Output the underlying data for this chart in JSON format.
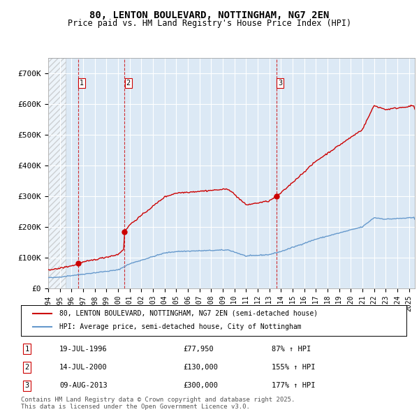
{
  "title": "80, LENTON BOULEVARD, NOTTINGHAM, NG7 2EN",
  "subtitle": "Price paid vs. HM Land Registry's House Price Index (HPI)",
  "ylabel": "",
  "background_color": "#dce9f5",
  "plot_bg_color": "#dce9f5",
  "hatch_area_end_year": 1995.5,
  "ylim": [
    0,
    750000
  ],
  "xlim_start": 1994.0,
  "xlim_end": 2025.5,
  "yticks": [
    0,
    100000,
    200000,
    300000,
    400000,
    500000,
    600000,
    700000
  ],
  "ytick_labels": [
    "£0",
    "£100K",
    "£200K",
    "£300K",
    "£400K",
    "£500K",
    "£600K",
    "£700K"
  ],
  "xtick_years": [
    1994,
    1995,
    1996,
    1997,
    1998,
    1999,
    2000,
    2001,
    2002,
    2003,
    2004,
    2005,
    2006,
    2007,
    2008,
    2009,
    2010,
    2011,
    2012,
    2013,
    2014,
    2015,
    2016,
    2017,
    2018,
    2019,
    2020,
    2021,
    2022,
    2023,
    2024,
    2025
  ],
  "transactions": [
    {
      "num": 1,
      "date_dec": 1996.55,
      "price": 77950,
      "label": "19-JUL-1996",
      "price_str": "£77,950",
      "hpi_pct": "87% ↑ HPI"
    },
    {
      "num": 2,
      "date_dec": 2000.54,
      "price": 130000,
      "label": "14-JUL-2000",
      "price_str": "£130,000",
      "hpi_pct": "155% ↑ HPI"
    },
    {
      "num": 3,
      "date_dec": 2013.61,
      "price": 300000,
      "label": "09-AUG-2013",
      "price_str": "£300,000",
      "hpi_pct": "177% ↑ HPI"
    }
  ],
  "legend_line1": "80, LENTON BOULEVARD, NOTTINGHAM, NG7 2EN (semi-detached house)",
  "legend_line2": "HPI: Average price, semi-detached house, City of Nottingham",
  "footer": "Contains HM Land Registry data © Crown copyright and database right 2025.\nThis data is licensed under the Open Government Licence v3.0.",
  "red_color": "#cc0000",
  "blue_color": "#6699cc"
}
